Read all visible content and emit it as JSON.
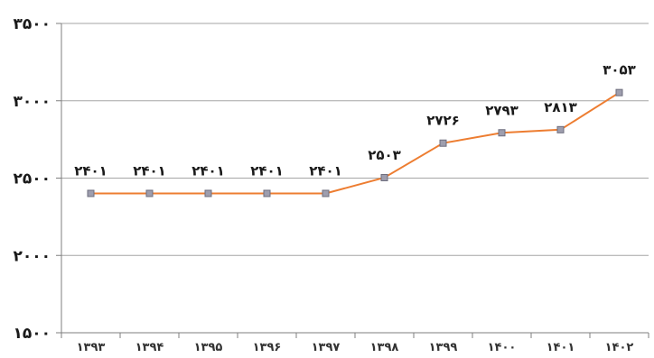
{
  "chart_data": {
    "type": "line",
    "title": "",
    "xlabel": "",
    "ylabel": "",
    "categories": [
      "۱۳۹۳",
      "۱۳۹۴",
      "۱۳۹۵",
      "۱۳۹۶",
      "۱۳۹۷",
      "۱۳۹۸",
      "۱۳۹۹",
      "۱۴۰۰",
      "۱۴۰۱",
      "۱۴۰۲"
    ],
    "series": [
      {
        "values": [
          2401,
          2401,
          2401,
          2401,
          2401,
          2503,
          2726,
          2793,
          2813,
          3053
        ]
      }
    ],
    "data_labels": [
      "۲۴۰۱",
      "۲۴۰۱",
      "۲۴۰۱",
      "۲۴۰۱",
      "۲۴۰۱",
      "۲۵۰۳",
      "۲۷۲۶",
      "۲۷۹۳",
      "۲۸۱۳",
      "۳۰۵۳"
    ],
    "ylim": [
      1500,
      3500
    ],
    "yticks": [
      1500,
      2000,
      2500,
      3000,
      3500
    ],
    "ytick_labels": [
      "۱۵۰۰",
      "۲۰۰۰",
      "۲۵۰۰",
      "۳۰۰۰",
      "۳۵۰۰"
    ],
    "grid": true,
    "legend": "none",
    "colors": {
      "line": "#ED7D31",
      "marker_fill": "#9E9EAE",
      "marker_stroke": "#6E6E7E",
      "grid": "#A6A6A6",
      "axis": "#7F7F7F"
    }
  }
}
